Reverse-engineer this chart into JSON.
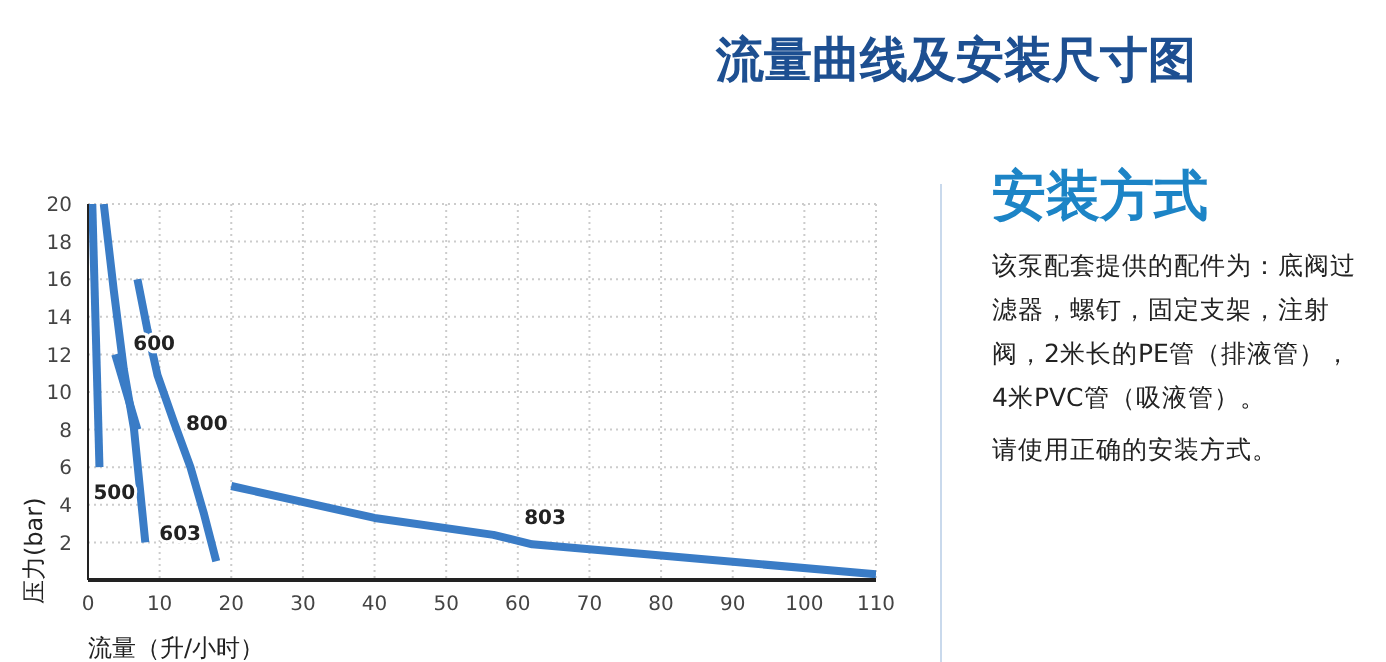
{
  "chart_data": {
    "type": "line",
    "title": "流量曲线及安装尺寸图",
    "xlabel": "流量（升/小时）",
    "ylabel": "压力(bar)",
    "annotations": [
      "安装方式",
      "该泵配套提供的配件为：底阀过滤器，螺钉，固定支架，注射阀，2米长的PE管（排液管），4米PVC管（吸液管）。",
      "请使用正确的安装方式。"
    ],
    "series": [
      {
        "name": "500",
        "color": "#3a7cc6",
        "x": [
          0.6,
          1.6
        ],
        "values": [
          20,
          6
        ]
      },
      {
        "name": "600",
        "color": "#3a7cc6",
        "x": [
          3.8,
          6.9
        ],
        "values": [
          12,
          8
        ]
      },
      {
        "name": "603",
        "color": "#3a7cc6",
        "x": [
          2.2,
          3.6,
          5,
          6.4,
          8
        ],
        "values": [
          20,
          15.4,
          11.2,
          8.1,
          2
        ]
      },
      {
        "name": "800",
        "color": "#3a7cc6",
        "x": [
          6.9,
          8.3,
          9.7,
          12,
          14.3,
          16.2,
          17.9
        ],
        "values": [
          16,
          13.3,
          10.9,
          8.4,
          6,
          3.5,
          1
        ]
      },
      {
        "name": "803",
        "color": "#3a7cc6",
        "x": [
          20,
          40,
          56.6,
          62,
          80,
          110
        ],
        "values": [
          5,
          3.3,
          2.4,
          1.9,
          1.3,
          0.3
        ]
      }
    ],
    "xlim": [
      0,
      110
    ],
    "xticks": [
      0,
      10,
      20,
      30,
      40,
      50,
      60,
      70,
      80,
      90,
      100,
      110
    ],
    "ylim": [
      0,
      20
    ],
    "yticks": [
      2,
      4,
      6,
      8,
      10,
      12,
      14,
      16,
      18,
      20
    ],
    "grid": true,
    "legend": false,
    "marker": "none",
    "line_style": "solid"
  }
}
